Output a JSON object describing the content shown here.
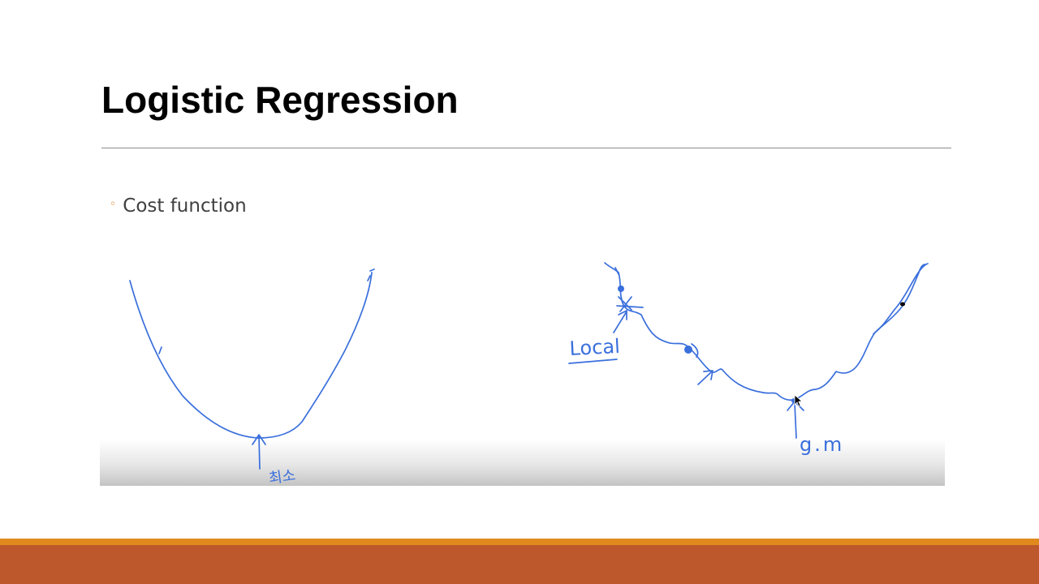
{
  "slide": {
    "title": "Logistic Regression",
    "bullets": [
      {
        "text": "Cost function",
        "marker_icon": "hollow-circle-bullet-icon"
      }
    ]
  },
  "annotations": {
    "convex_curve_label": "최소",
    "local_label": "Local",
    "global_label": "g.m"
  },
  "colors": {
    "title": "#000000",
    "body_text": "#404040",
    "bullet_marker": "#e07b1f",
    "ink": "#3a6fdc",
    "footer_accent": "#e08a1e",
    "footer_bar": "#bd582c"
  }
}
